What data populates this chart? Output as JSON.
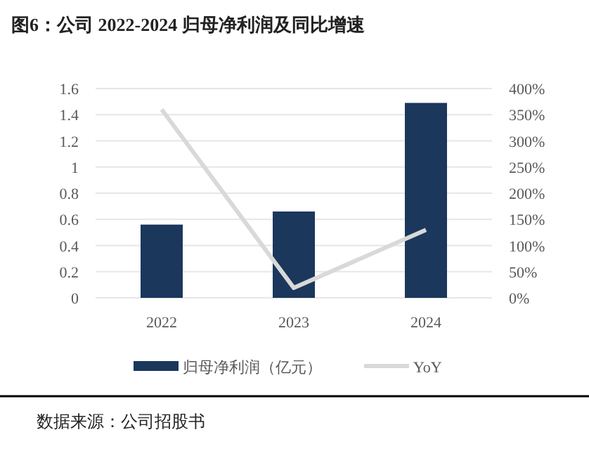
{
  "chart_data": {
    "type": "bar",
    "title": "图6：公司 2022-2024 归母净利润及同比增速",
    "categories": [
      "2022",
      "2023",
      "2024"
    ],
    "series": [
      {
        "name": "归母净利润（亿元）",
        "color": "#1b375c",
        "values": [
          0.56,
          0.66,
          1.49
        ]
      },
      {
        "name": "YoY",
        "type": "line",
        "axis": "y2",
        "color": "#d9d9d9",
        "values": [
          360,
          19,
          130
        ]
      }
    ],
    "ylim": [
      0,
      1.6
    ],
    "yticks": [
      0,
      0.2,
      0.4,
      0.6,
      0.8,
      1,
      1.2,
      1.4,
      1.6
    ],
    "y2lim": [
      0,
      400
    ],
    "y2ticks": [
      {
        "value": 0,
        "label": "0%"
      },
      {
        "value": 50,
        "label": "50%"
      },
      {
        "value": 100,
        "label": "100%"
      },
      {
        "value": 150,
        "label": "150%"
      },
      {
        "value": 200,
        "label": "200%"
      },
      {
        "value": 250,
        "label": "250%"
      },
      {
        "value": 300,
        "label": "300%"
      },
      {
        "value": 350,
        "label": "350%"
      },
      {
        "value": 400,
        "label": "400%"
      }
    ],
    "grid": "y",
    "legend": "bottom",
    "marker": "none",
    "annotations": [
      "数据来源：公司招股书"
    ]
  }
}
